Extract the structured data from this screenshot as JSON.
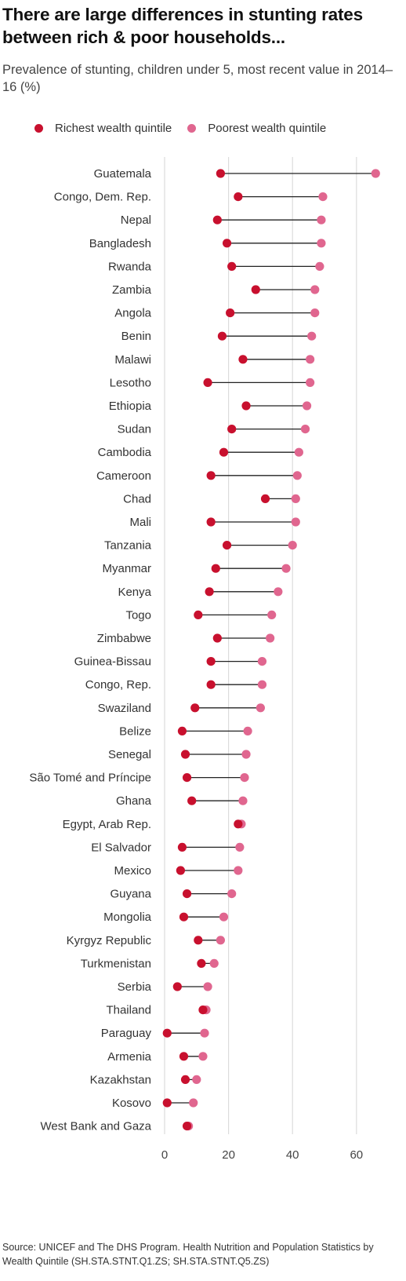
{
  "chart_data": {
    "type": "dot-plot",
    "title": "There are large differences in stunting rates between rich & poor households...",
    "subtitle": "Prevalence of stunting, children under 5, most recent value in 2014–16 (%)",
    "legend": [
      {
        "name": "Richest wealth quintile",
        "color": "#c8102e"
      },
      {
        "name": "Poorest wealth quintile",
        "color": "#e0668f"
      }
    ],
    "xlim": [
      0,
      65
    ],
    "xticks": [
      0,
      20,
      40,
      60
    ],
    "grid": true,
    "categories": [
      "Guatemala",
      "Congo, Dem. Rep.",
      "Nepal",
      "Bangladesh",
      "Rwanda",
      "Zambia",
      "Angola",
      "Benin",
      "Malawi",
      "Lesotho",
      "Ethiopia",
      "Sudan",
      "Cambodia",
      "Cameroon",
      "Chad",
      "Mali",
      "Tanzania",
      "Myanmar",
      "Kenya",
      "Togo",
      "Zimbabwe",
      "Guinea-Bissau",
      "Congo, Rep.",
      "Swaziland",
      "Belize",
      "Senegal",
      "São Tomé and Príncipe",
      "Ghana",
      "Egypt, Arab Rep.",
      "El Salvador",
      "Mexico",
      "Guyana",
      "Mongolia",
      "Kyrgyz Republic",
      "Turkmenistan",
      "Serbia",
      "Thailand",
      "Paraguay",
      "Armenia",
      "Kazakhstan",
      "Kosovo",
      "West Bank and Gaza"
    ],
    "series": [
      {
        "name": "Richest wealth quintile",
        "values": [
          17.5,
          23.0,
          16.5,
          19.5,
          21.0,
          28.5,
          20.5,
          18.0,
          24.5,
          13.5,
          25.5,
          21.0,
          18.5,
          14.5,
          31.5,
          14.5,
          19.5,
          16.0,
          14.0,
          10.5,
          16.5,
          14.5,
          14.5,
          9.5,
          5.5,
          6.5,
          7.0,
          8.5,
          23.0,
          5.5,
          5.0,
          7.0,
          6.0,
          10.5,
          11.5,
          4.0,
          12.0,
          0.8,
          6.0,
          6.5,
          0.8,
          7.0
        ],
        "color": "#c8102e"
      },
      {
        "name": "Poorest wealth quintile",
        "values": [
          66.0,
          49.5,
          49.0,
          49.0,
          48.5,
          47.0,
          47.0,
          46.0,
          45.5,
          45.5,
          44.5,
          44.0,
          42.0,
          41.5,
          41.0,
          41.0,
          40.0,
          38.0,
          35.5,
          33.5,
          33.0,
          30.5,
          30.5,
          30.0,
          26.0,
          25.5,
          25.0,
          24.5,
          24.0,
          23.5,
          23.0,
          21.0,
          18.5,
          17.5,
          15.5,
          13.5,
          13.0,
          12.5,
          12.0,
          10.0,
          9.0,
          7.5
        ],
        "color": "#e0668f"
      }
    ]
  },
  "source": "Source: UNICEF and The DHS Program. Health Nutrition and Population Statistics by Wealth Quintile (SH.STA.STNT.Q1.ZS; SH.STA.STNT.Q5.ZS)"
}
